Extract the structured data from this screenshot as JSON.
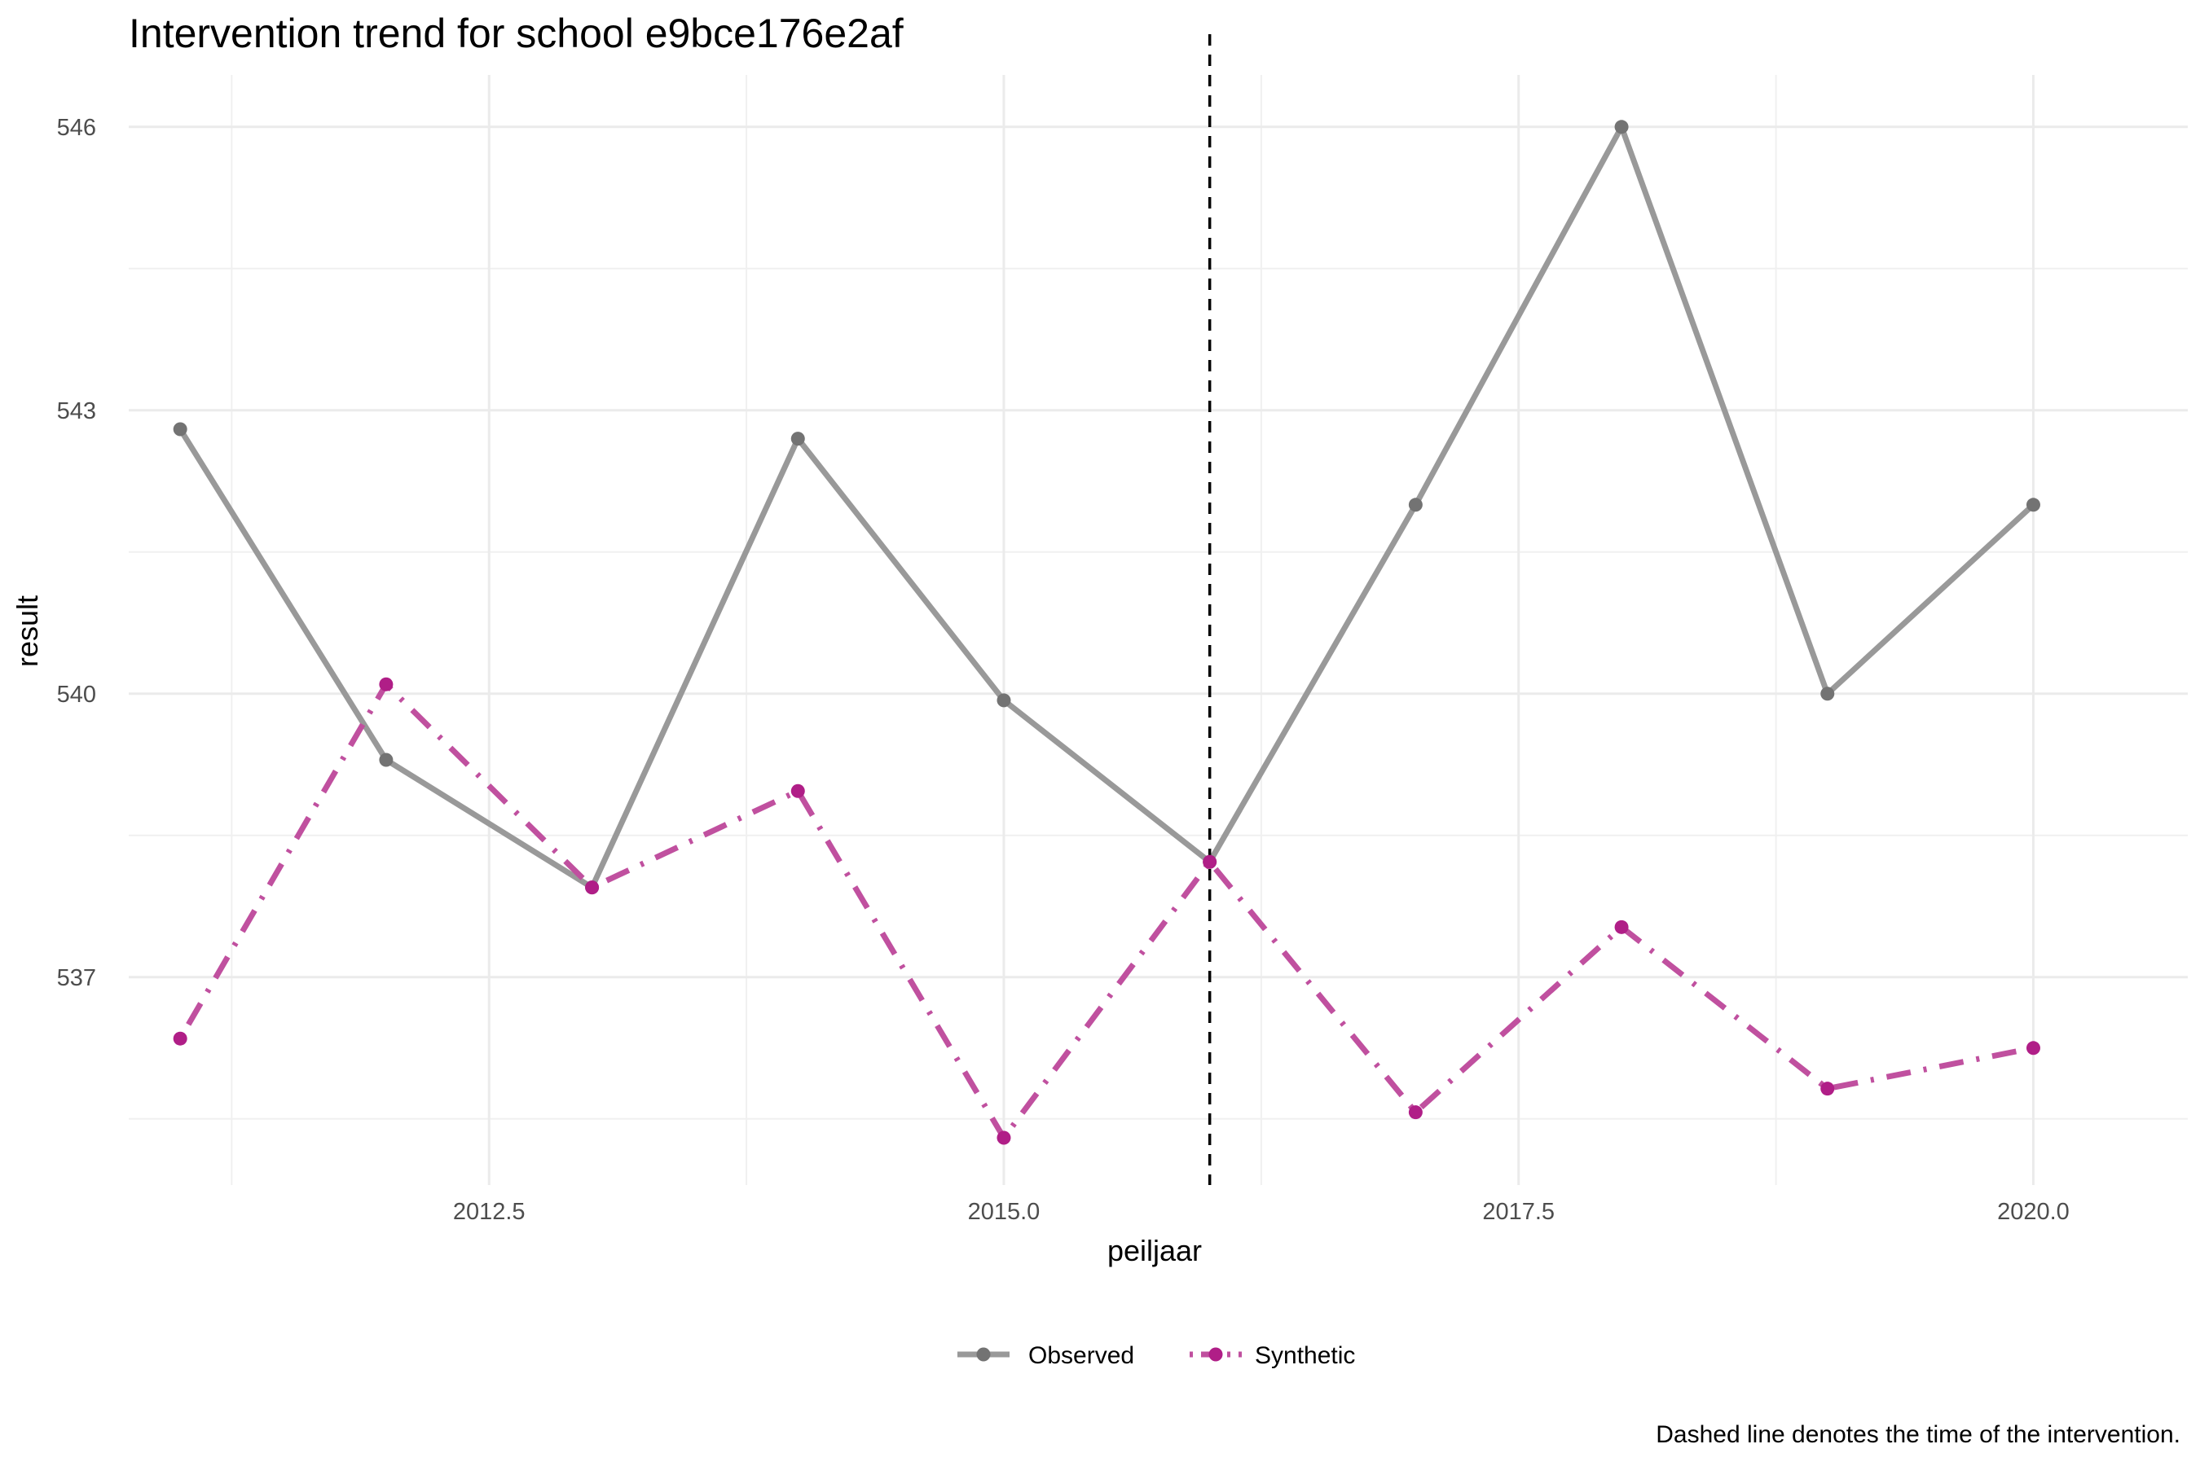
{
  "chart_data": {
    "type": "line",
    "title": "Intervention trend for school e9bce176e2af",
    "xlabel": "peiljaar",
    "ylabel": "result",
    "xlim": [
      2010.75,
      2020.75
    ],
    "ylim": [
      534.8,
      546.55
    ],
    "x_ticks": [
      2012.5,
      2015.0,
      2017.5,
      2020.0
    ],
    "x_tick_labels": [
      "2012.5",
      "2015.0",
      "2017.5",
      "2020.0"
    ],
    "y_ticks": [
      537,
      540,
      543,
      546
    ],
    "y_tick_labels": [
      "537",
      "540",
      "543",
      "546"
    ],
    "grid": true,
    "intervention_x": 2016,
    "x": [
      2011,
      2012,
      2013,
      2014,
      2015,
      2016,
      2017,
      2018,
      2019,
      2020
    ],
    "series": [
      {
        "name": "Observed",
        "color": "#999999",
        "point_color": "#737373",
        "line_style": "solid",
        "values": [
          542.8,
          539.3,
          537.95,
          542.7,
          539.93,
          538.22,
          542.0,
          546.0,
          540.0,
          542.0
        ]
      },
      {
        "name": "Synthetic",
        "color": "#c0509f",
        "point_color": "#b01e87",
        "line_style": "dotdash",
        "values": [
          536.35,
          540.1,
          537.95,
          538.97,
          535.3,
          538.22,
          535.57,
          537.53,
          535.82,
          536.25
        ]
      }
    ],
    "legend_position": "bottom",
    "caption": "Dashed line denotes the time of the intervention."
  }
}
